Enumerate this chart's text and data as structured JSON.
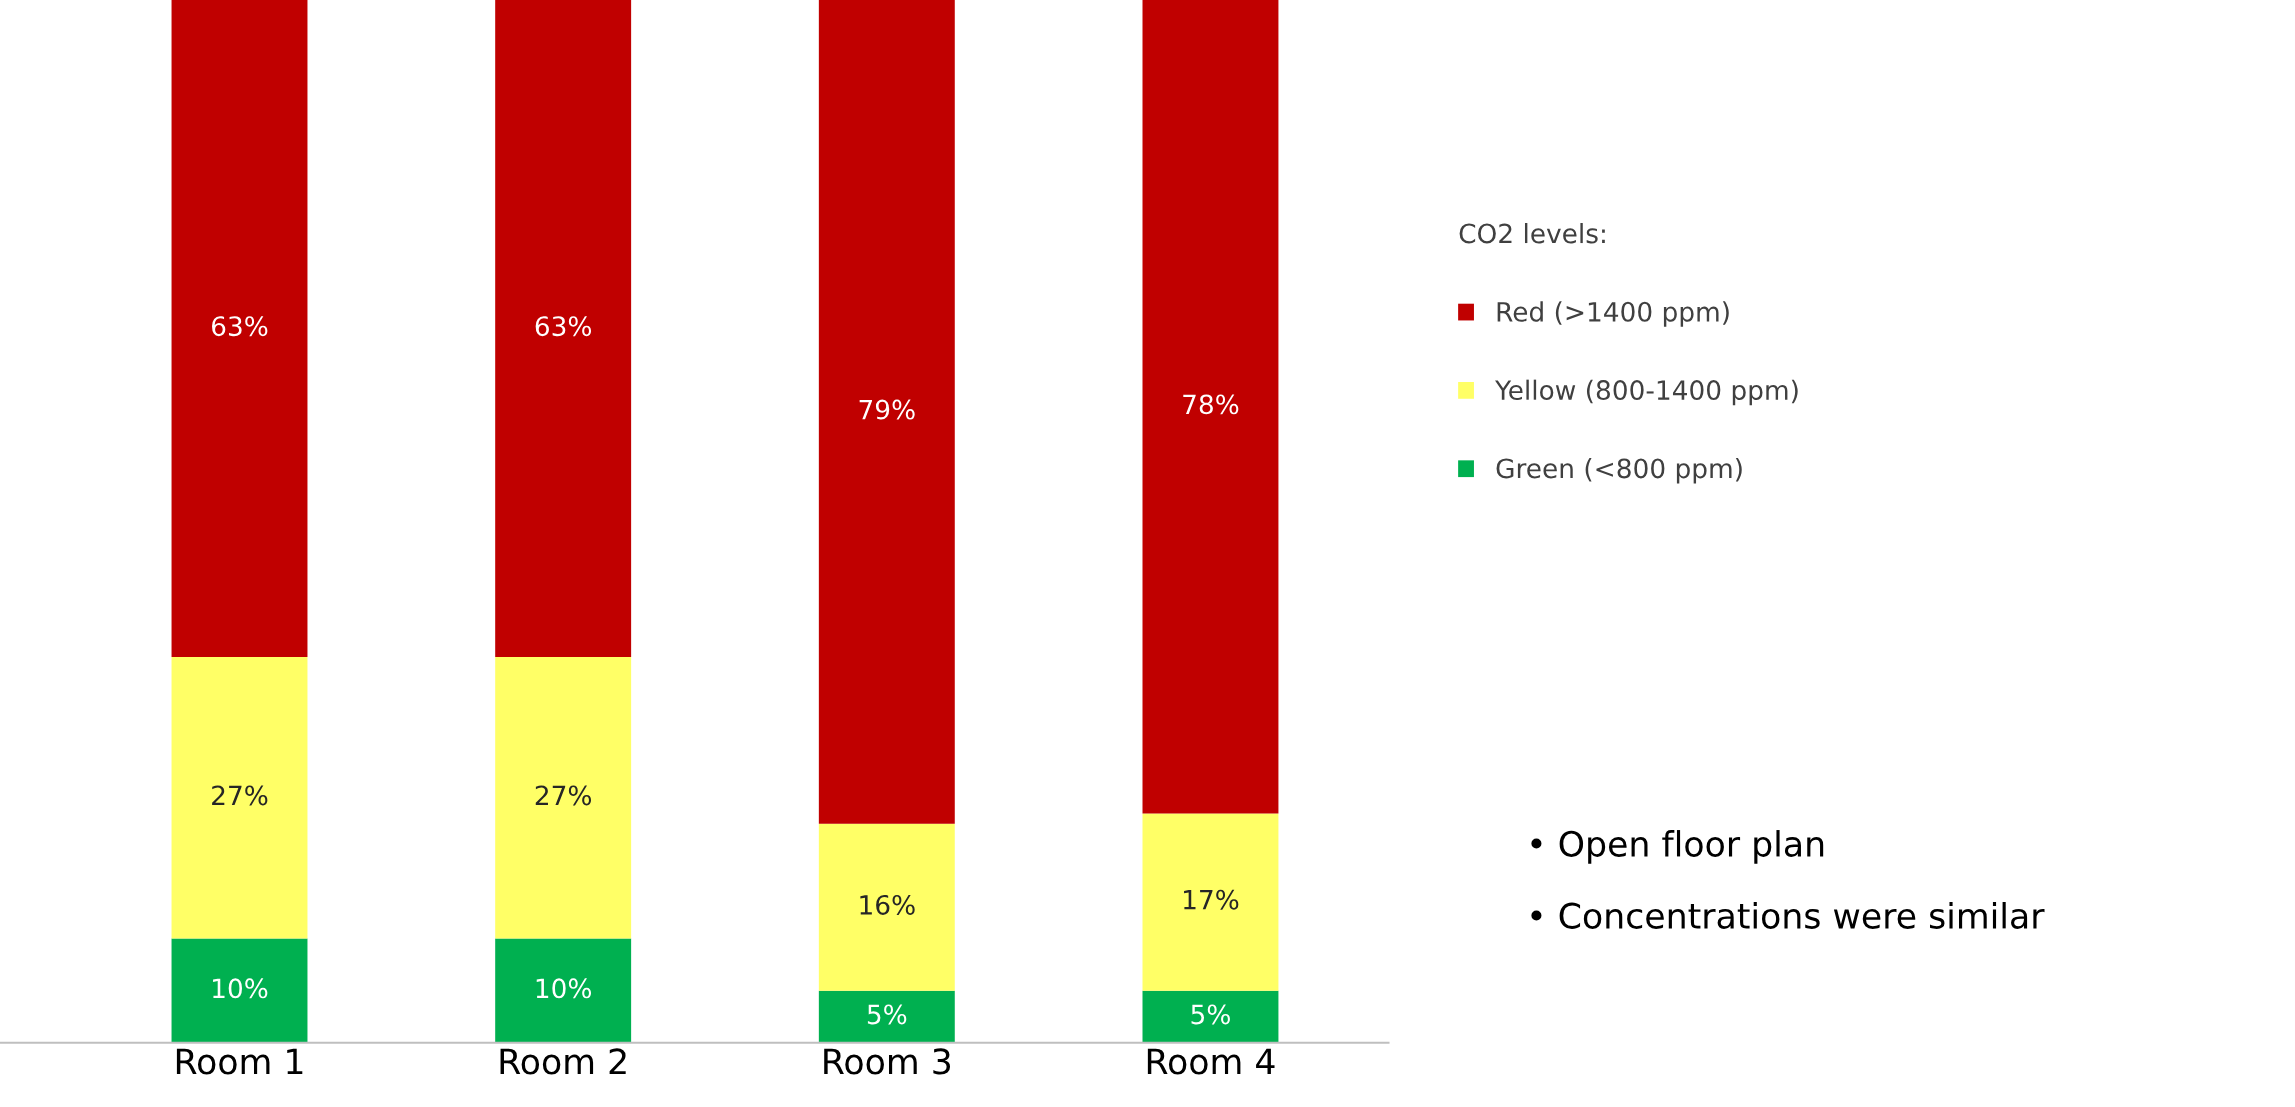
{
  "chart_data": {
    "type": "bar",
    "stacked": true,
    "categories": [
      "Room 1",
      "Room 2",
      "Room 3",
      "Room 4"
    ],
    "series": [
      {
        "name": "Green (<800 ppm)",
        "color": "#00b050",
        "values": [
          10,
          10,
          5,
          5
        ],
        "value_labels": [
          "10%",
          "10%",
          "5%",
          "5%"
        ]
      },
      {
        "name": "Yellow (800-1400 ppm)",
        "color": "#ffff66",
        "values": [
          27,
          27,
          16,
          17
        ],
        "value_labels": [
          "27%",
          "27%",
          "16%",
          "17%"
        ]
      },
      {
        "name": "Red (>1400 ppm)",
        "color": "#c00000",
        "values": [
          63,
          63,
          79,
          78
        ],
        "value_labels": [
          "63%",
          "63%",
          "79%",
          "78%"
        ]
      }
    ],
    "ylim": [
      0,
      100
    ],
    "tick_labels": "x",
    "grid": false,
    "legend": "right",
    "legend_title": "CO2 levels:",
    "annotations": [
      "• Open floor plan",
      "• Concentrations were similar"
    ]
  }
}
